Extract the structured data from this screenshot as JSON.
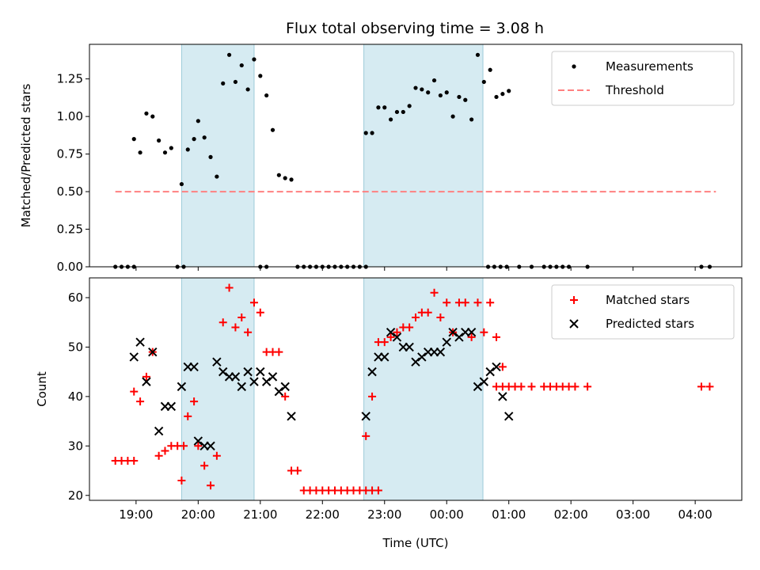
{
  "chart_data": [
    {
      "type": "scatter",
      "title": "Flux total observing time = 3.08 h",
      "xlabel": "",
      "ylabel": "Matched/Predicted stars",
      "xlim": [
        "18:15",
        "04:45"
      ],
      "ylim": [
        0,
        1.48
      ],
      "yticks": [
        "0.00",
        "0.25",
        "0.50",
        "0.75",
        "1.00",
        "1.25"
      ],
      "legend": {
        "position": "top-right",
        "entries": [
          "Measurements",
          "Threshold"
        ]
      },
      "shaded_intervals": [
        [
          "19:44",
          "20:54"
        ],
        [
          "22:40",
          "00:35"
        ]
      ],
      "threshold": {
        "name": "Threshold",
        "y": 0.5,
        "x_range": [
          "18:40",
          "04:20"
        ],
        "color": "#ff8080"
      },
      "series": [
        {
          "name": "Measurements",
          "color": "#000000",
          "points": [
            [
              "18:40",
              0
            ],
            [
              "18:46",
              0
            ],
            [
              "18:52",
              0
            ],
            [
              "18:58",
              0
            ],
            [
              "18:58",
              0.85
            ],
            [
              "19:04",
              0.76
            ],
            [
              "19:10",
              1.02
            ],
            [
              "19:16",
              1.0
            ],
            [
              "19:22",
              0.84
            ],
            [
              "19:28",
              0.76
            ],
            [
              "19:34",
              0.79
            ],
            [
              "19:40",
              0
            ],
            [
              "19:46",
              0
            ],
            [
              "19:44",
              0.55
            ],
            [
              "19:50",
              0.78
            ],
            [
              "19:56",
              0.85
            ],
            [
              "20:00",
              0.97
            ],
            [
              "20:06",
              0.86
            ],
            [
              "20:12",
              0.73
            ],
            [
              "20:18",
              0.6
            ],
            [
              "20:24",
              1.22
            ],
            [
              "20:30",
              1.41
            ],
            [
              "20:36",
              1.23
            ],
            [
              "20:42",
              1.34
            ],
            [
              "20:48",
              1.18
            ],
            [
              "20:54",
              1.38
            ],
            [
              "21:00",
              1.27
            ],
            [
              "21:06",
              1.14
            ],
            [
              "21:00",
              0
            ],
            [
              "21:06",
              0
            ],
            [
              "21:12",
              0.91
            ],
            [
              "21:18",
              0.61
            ],
            [
              "21:24",
              0.59
            ],
            [
              "21:30",
              0.58
            ],
            [
              "21:36",
              0
            ],
            [
              "21:42",
              0
            ],
            [
              "21:48",
              0
            ],
            [
              "21:54",
              0
            ],
            [
              "22:00",
              0
            ],
            [
              "22:06",
              0
            ],
            [
              "22:12",
              0
            ],
            [
              "22:18",
              0
            ],
            [
              "22:24",
              0
            ],
            [
              "22:30",
              0
            ],
            [
              "22:36",
              0
            ],
            [
              "22:42",
              0
            ],
            [
              "22:42",
              0.89
            ],
            [
              "22:48",
              0.89
            ],
            [
              "22:54",
              1.06
            ],
            [
              "23:00",
              1.06
            ],
            [
              "23:06",
              0.98
            ],
            [
              "23:12",
              1.03
            ],
            [
              "23:18",
              1.03
            ],
            [
              "23:24",
              1.07
            ],
            [
              "23:30",
              1.19
            ],
            [
              "23:36",
              1.18
            ],
            [
              "23:42",
              1.16
            ],
            [
              "23:48",
              1.24
            ],
            [
              "23:54",
              1.14
            ],
            [
              "00:00",
              1.16
            ],
            [
              "00:06",
              1.0
            ],
            [
              "00:12",
              1.13
            ],
            [
              "00:18",
              1.11
            ],
            [
              "00:24",
              0.98
            ],
            [
              "00:30",
              1.41
            ],
            [
              "00:36",
              1.23
            ],
            [
              "00:42",
              1.31
            ],
            [
              "00:48",
              1.13
            ],
            [
              "00:54",
              1.15
            ],
            [
              "01:00",
              1.17
            ],
            [
              "00:40",
              0
            ],
            [
              "00:46",
              0
            ],
            [
              "00:52",
              0
            ],
            [
              "00:58",
              0
            ],
            [
              "01:10",
              0
            ],
            [
              "01:22",
              0
            ],
            [
              "01:34",
              0
            ],
            [
              "01:40",
              0
            ],
            [
              "01:46",
              0
            ],
            [
              "01:52",
              0
            ],
            [
              "01:58",
              0
            ],
            [
              "02:16",
              0
            ],
            [
              "04:06",
              0
            ],
            [
              "04:14",
              0
            ]
          ]
        }
      ]
    },
    {
      "type": "scatter",
      "title": "",
      "xlabel": "Time (UTC)",
      "ylabel": "Count",
      "xlim": [
        "18:15",
        "04:45"
      ],
      "ylim": [
        19,
        64
      ],
      "yticks": [
        "20",
        "30",
        "40",
        "50",
        "60"
      ],
      "xticks": [
        "19:00",
        "20:00",
        "21:00",
        "22:00",
        "23:00",
        "00:00",
        "01:00",
        "02:00",
        "03:00",
        "04:00"
      ],
      "legend": {
        "position": "top-right",
        "entries": [
          "Matched stars",
          "Predicted stars"
        ]
      },
      "shaded_intervals": [
        [
          "19:44",
          "20:54"
        ],
        [
          "22:40",
          "00:35"
        ]
      ],
      "series": [
        {
          "name": "Matched stars",
          "marker": "plus",
          "color": "#ff0000",
          "points": [
            [
              "18:40",
              27
            ],
            [
              "18:46",
              27
            ],
            [
              "18:52",
              27
            ],
            [
              "18:58",
              27
            ],
            [
              "18:58",
              41
            ],
            [
              "19:04",
              39
            ],
            [
              "19:10",
              44
            ],
            [
              "19:16",
              49
            ],
            [
              "19:22",
              28
            ],
            [
              "19:28",
              29
            ],
            [
              "19:34",
              30
            ],
            [
              "19:40",
              30
            ],
            [
              "19:46",
              30
            ],
            [
              "19:44",
              23
            ],
            [
              "19:50",
              36
            ],
            [
              "19:56",
              39
            ],
            [
              "20:00",
              30
            ],
            [
              "20:06",
              26
            ],
            [
              "20:12",
              22
            ],
            [
              "20:18",
              28
            ],
            [
              "20:24",
              55
            ],
            [
              "20:30",
              62
            ],
            [
              "20:36",
              54
            ],
            [
              "20:42",
              56
            ],
            [
              "20:48",
              53
            ],
            [
              "20:54",
              59
            ],
            [
              "21:00",
              57
            ],
            [
              "21:06",
              49
            ],
            [
              "21:12",
              49
            ],
            [
              "21:18",
              49
            ],
            [
              "21:24",
              40
            ],
            [
              "21:30",
              25
            ],
            [
              "21:36",
              25
            ],
            [
              "21:42",
              21
            ],
            [
              "21:48",
              21
            ],
            [
              "21:54",
              21
            ],
            [
              "22:00",
              21
            ],
            [
              "22:06",
              21
            ],
            [
              "22:12",
              21
            ],
            [
              "22:18",
              21
            ],
            [
              "22:24",
              21
            ],
            [
              "22:30",
              21
            ],
            [
              "22:36",
              21
            ],
            [
              "22:42",
              21
            ],
            [
              "22:48",
              21
            ],
            [
              "22:54",
              21
            ],
            [
              "22:42",
              32
            ],
            [
              "22:48",
              40
            ],
            [
              "22:54",
              51
            ],
            [
              "23:00",
              51
            ],
            [
              "23:06",
              52
            ],
            [
              "23:12",
              53
            ],
            [
              "23:18",
              54
            ],
            [
              "23:24",
              54
            ],
            [
              "23:30",
              56
            ],
            [
              "23:36",
              57
            ],
            [
              "23:42",
              57
            ],
            [
              "23:48",
              61
            ],
            [
              "23:54",
              56
            ],
            [
              "00:00",
              59
            ],
            [
              "00:06",
              53
            ],
            [
              "00:12",
              59
            ],
            [
              "00:18",
              59
            ],
            [
              "00:24",
              52
            ],
            [
              "00:30",
              59
            ],
            [
              "00:36",
              53
            ],
            [
              "00:42",
              59
            ],
            [
              "00:48",
              52
            ],
            [
              "00:54",
              46
            ],
            [
              "00:48",
              42
            ],
            [
              "00:54",
              42
            ],
            [
              "01:00",
              42
            ],
            [
              "01:06",
              42
            ],
            [
              "01:12",
              42
            ],
            [
              "01:22",
              42
            ],
            [
              "01:34",
              42
            ],
            [
              "01:40",
              42
            ],
            [
              "01:46",
              42
            ],
            [
              "01:52",
              42
            ],
            [
              "01:58",
              42
            ],
            [
              "02:04",
              42
            ],
            [
              "02:16",
              42
            ],
            [
              "04:06",
              42
            ],
            [
              "04:14",
              42
            ]
          ]
        },
        {
          "name": "Predicted stars",
          "marker": "x",
          "color": "#000000",
          "points": [
            [
              "18:58",
              48
            ],
            [
              "19:04",
              51
            ],
            [
              "19:10",
              43
            ],
            [
              "19:16",
              49
            ],
            [
              "19:22",
              33
            ],
            [
              "19:28",
              38
            ],
            [
              "19:34",
              38
            ],
            [
              "19:44",
              42
            ],
            [
              "19:50",
              46
            ],
            [
              "19:56",
              46
            ],
            [
              "20:00",
              31
            ],
            [
              "20:06",
              30
            ],
            [
              "20:12",
              30
            ],
            [
              "20:18",
              47
            ],
            [
              "20:24",
              45
            ],
            [
              "20:30",
              44
            ],
            [
              "20:36",
              44
            ],
            [
              "20:42",
              42
            ],
            [
              "20:48",
              45
            ],
            [
              "20:54",
              43
            ],
            [
              "21:00",
              45
            ],
            [
              "21:06",
              43
            ],
            [
              "21:12",
              44
            ],
            [
              "21:18",
              41
            ],
            [
              "21:24",
              42
            ],
            [
              "21:30",
              36
            ],
            [
              "22:42",
              36
            ],
            [
              "22:48",
              45
            ],
            [
              "22:54",
              48
            ],
            [
              "23:00",
              48
            ],
            [
              "23:06",
              53
            ],
            [
              "23:12",
              52
            ],
            [
              "23:18",
              50
            ],
            [
              "23:24",
              50
            ],
            [
              "23:30",
              47
            ],
            [
              "23:36",
              48
            ],
            [
              "23:42",
              49
            ],
            [
              "23:48",
              49
            ],
            [
              "23:54",
              49
            ],
            [
              "00:00",
              51
            ],
            [
              "00:06",
              53
            ],
            [
              "00:12",
              52
            ],
            [
              "00:18",
              53
            ],
            [
              "00:24",
              53
            ],
            [
              "00:30",
              42
            ],
            [
              "00:36",
              43
            ],
            [
              "00:42",
              45
            ],
            [
              "00:48",
              46
            ],
            [
              "00:54",
              40
            ],
            [
              "01:00",
              36
            ]
          ]
        }
      ]
    }
  ]
}
